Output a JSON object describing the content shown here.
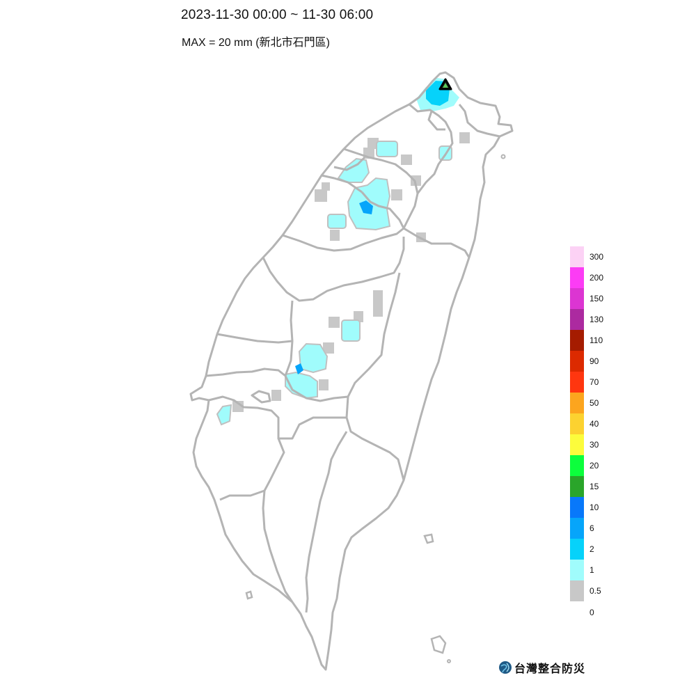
{
  "header": {
    "title": "2023-11-30 00:00 ~ 11-30 06:00",
    "subtitle": "MAX = 20 mm (新北市石門區)"
  },
  "legend": {
    "entries": [
      {
        "label": "300",
        "color": "#fcd2f5"
      },
      {
        "label": "200",
        "color": "#fc3cf5"
      },
      {
        "label": "150",
        "color": "#dc35d2"
      },
      {
        "label": "130",
        "color": "#ac2aa0"
      },
      {
        "label": "110",
        "color": "#a51c00"
      },
      {
        "label": "90",
        "color": "#dc2a00"
      },
      {
        "label": "70",
        "color": "#ff360f"
      },
      {
        "label": "50",
        "color": "#fca51e"
      },
      {
        "label": "40",
        "color": "#fcd230"
      },
      {
        "label": "30",
        "color": "#fcfc3c"
      },
      {
        "label": "20",
        "color": "#0cff3c"
      },
      {
        "label": "15",
        "color": "#2aa52a"
      },
      {
        "label": "10",
        "color": "#0878fa"
      },
      {
        "label": "6",
        "color": "#06a5fa"
      },
      {
        "label": "2",
        "color": "#06d2fa"
      },
      {
        "label": "1",
        "color": "#a0fcfc"
      },
      {
        "label": "0.5",
        "color": "#c8c8c8"
      }
    ],
    "bottom_label": "0"
  },
  "logo": {
    "text": "台灣整合防災",
    "icon": "globe-logo-icon"
  },
  "map": {
    "max_marker_icon": "triangle-max-marker-icon",
    "border_color": "#b4b4b4"
  }
}
